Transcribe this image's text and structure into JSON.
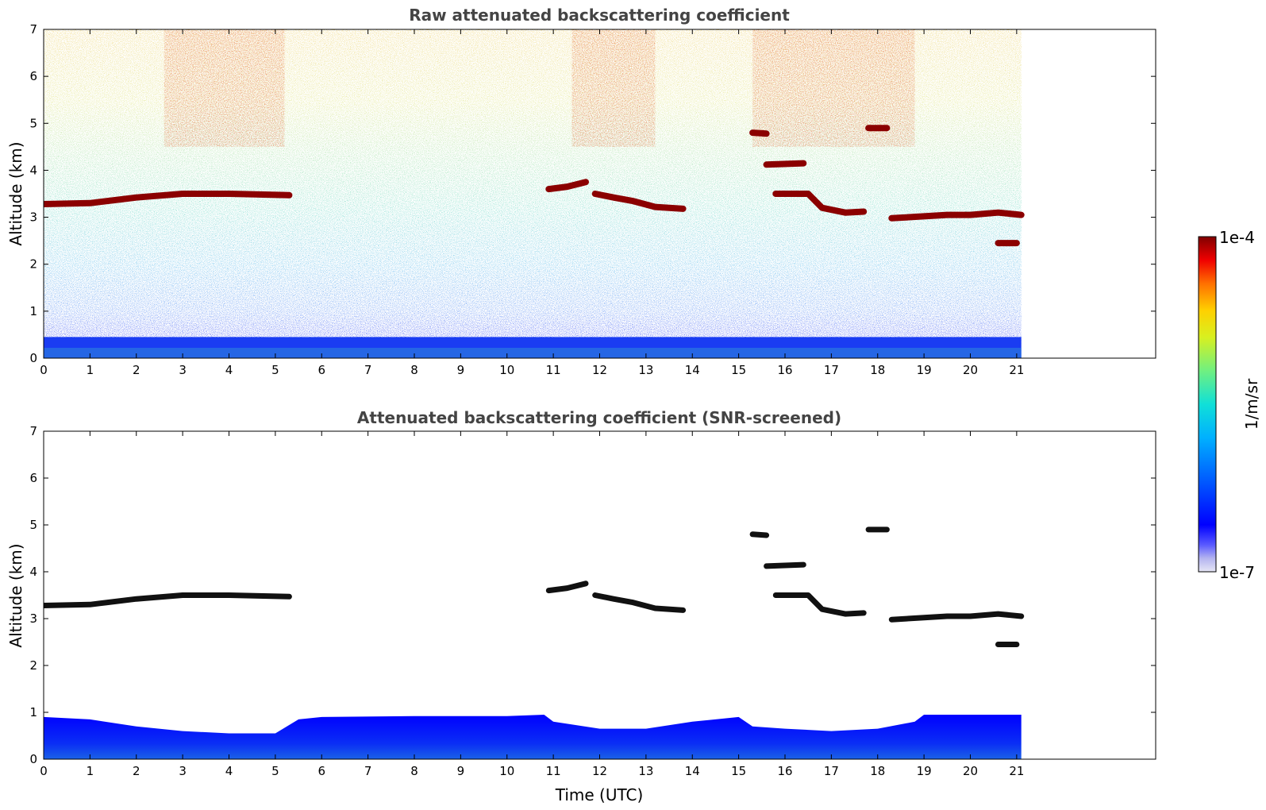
{
  "chart_data": [
    {
      "type": "heatmap",
      "title": "Raw attenuated backscattering coefficient",
      "xlabel": "",
      "ylabel": "Altitude (km)",
      "xlim": [
        0,
        24
      ],
      "ylim": [
        0,
        7
      ],
      "xticks": [
        "0",
        "1",
        "2",
        "3",
        "4",
        "5",
        "6",
        "7",
        "8",
        "9",
        "10",
        "11",
        "12",
        "13",
        "14",
        "15",
        "16",
        "17",
        "18",
        "19",
        "20",
        "21"
      ],
      "yticks": [
        "0",
        "1",
        "2",
        "3",
        "4",
        "5",
        "6",
        "7"
      ],
      "data_end_time": 21.1,
      "layers": [
        {
          "name": "cloud-layer-1",
          "points": [
            [
              0,
              3.28
            ],
            [
              1,
              3.3
            ],
            [
              2,
              3.42
            ],
            [
              3,
              3.5
            ],
            [
              4,
              3.5
            ],
            [
              5.3,
              3.47
            ]
          ]
        },
        {
          "name": "cloud-layer-2",
          "points": [
            [
              10.9,
              3.6
            ],
            [
              11.3,
              3.65
            ],
            [
              11.7,
              3.75
            ]
          ]
        },
        {
          "name": "cloud-layer-3",
          "points": [
            [
              11.9,
              3.5
            ],
            [
              12.3,
              3.42
            ],
            [
              12.7,
              3.35
            ],
            [
              13.2,
              3.22
            ],
            [
              13.8,
              3.18
            ]
          ]
        },
        {
          "name": "cloud-layer-4",
          "points": [
            [
              15.3,
              4.8
            ],
            [
              15.6,
              4.78
            ]
          ]
        },
        {
          "name": "cloud-layer-5",
          "points": [
            [
              15.6,
              4.12
            ],
            [
              16.4,
              4.15
            ]
          ]
        },
        {
          "name": "cloud-layer-6",
          "points": [
            [
              15.8,
              3.5
            ],
            [
              16.5,
              3.5
            ],
            [
              16.8,
              3.2
            ],
            [
              17.3,
              3.1
            ],
            [
              17.7,
              3.12
            ]
          ]
        },
        {
          "name": "cloud-layer-7",
          "points": [
            [
              17.8,
              4.9
            ],
            [
              18.2,
              4.9
            ]
          ]
        },
        {
          "name": "cloud-layer-8",
          "points": [
            [
              18.3,
              2.98
            ],
            [
              19,
              3.02
            ],
            [
              19.5,
              3.05
            ],
            [
              20,
              3.05
            ],
            [
              20.6,
              3.1
            ],
            [
              21.1,
              3.05
            ]
          ]
        },
        {
          "name": "cloud-layer-9",
          "points": [
            [
              20.6,
              2.45
            ],
            [
              21.0,
              2.45
            ]
          ]
        }
      ]
    },
    {
      "type": "heatmap",
      "title": "Attenuated backscattering coefficient (SNR-screened)",
      "xlabel": "Time (UTC)",
      "ylabel": "Altitude (km)",
      "xlim": [
        0,
        24
      ],
      "ylim": [
        0,
        7
      ],
      "xticks": [
        "0",
        "1",
        "2",
        "3",
        "4",
        "5",
        "6",
        "7",
        "8",
        "9",
        "10",
        "11",
        "12",
        "13",
        "14",
        "15",
        "16",
        "17",
        "18",
        "19",
        "20",
        "21"
      ],
      "yticks": [
        "0",
        "1",
        "2",
        "3",
        "4",
        "5",
        "6",
        "7"
      ],
      "data_end_time": 21.1,
      "boundary_layer_top": [
        [
          0,
          0.9
        ],
        [
          1,
          0.85
        ],
        [
          2,
          0.7
        ],
        [
          3,
          0.6
        ],
        [
          4,
          0.55
        ],
        [
          5,
          0.55
        ],
        [
          5.5,
          0.85
        ],
        [
          6,
          0.9
        ],
        [
          8,
          0.92
        ],
        [
          10,
          0.92
        ],
        [
          10.8,
          0.95
        ],
        [
          11,
          0.8
        ],
        [
          12,
          0.65
        ],
        [
          13,
          0.65
        ],
        [
          14,
          0.8
        ],
        [
          15,
          0.9
        ],
        [
          15.3,
          0.7
        ],
        [
          16,
          0.65
        ],
        [
          17,
          0.6
        ],
        [
          18,
          0.65
        ],
        [
          18.8,
          0.8
        ],
        [
          19,
          0.95
        ],
        [
          20,
          0.95
        ],
        [
          21.1,
          0.95
        ]
      ],
      "colorbar": {
        "label": "1/m/sr",
        "max_label": "1e-4",
        "min_label": "1e-7",
        "scale": "log",
        "colormap": "jet"
      }
    }
  ],
  "colors": {
    "title": "#444444",
    "cloud": "#8b0000",
    "boundary_layer": "#0a2cf5",
    "screened_cloud": "#111111"
  }
}
